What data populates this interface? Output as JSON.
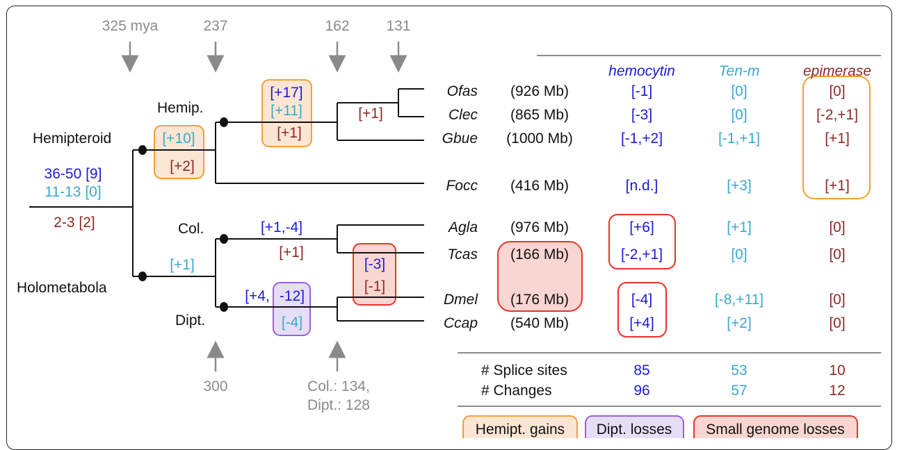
{
  "colors": {
    "hemocytin": "#1a1adb",
    "tenm": "#3aa9cc",
    "epimerase": "#8b2a26",
    "gray": "#8a8a8a",
    "black": "#111111",
    "hemipt_box": "#f3a033",
    "hemipt_fill": "#fbe6d4",
    "dipt_box": "#9b5fe0",
    "dipt_fill": "#e6def5",
    "small_box": "#e8332a",
    "small_fill": "#f9d6d1"
  },
  "times": {
    "t325": "325 mya",
    "t237": "237",
    "t162": "162",
    "t131": "131",
    "t300": "300",
    "t134": "Col.: 134,",
    "t128": "Dipt.: 128"
  },
  "clades": {
    "hemipteroid": "Hemipteroid",
    "holometabola": "Holometabola",
    "hemip": "Hemip.",
    "col": "Col.",
    "dipt": "Dipt."
  },
  "root_counts": {
    "hemocytin": "36-50 [9]",
    "tenm": "11-13 [0]",
    "epimerase": "2-3 [2]"
  },
  "branch_changes": {
    "hemiptera_stem_tenm": "[+10]",
    "hemiptera_stem_epi": "[+2]",
    "hemip_inner_hemo": "[+17]",
    "hemip_inner_tenm": "[+11]",
    "hemip_inner_epi": "[+1]",
    "ofas_clec_epi": "[+1]",
    "holo_stem_tenm": "[+1]",
    "col_stem_hemo": "[+1,-4]",
    "col_stem_epi": "[+1]",
    "dipt_stem_hemo_a": "[+4,",
    "dipt_stem_hemo_b": "-12]",
    "dipt_stem_tenm": "[-4]",
    "small_hemo": "[-3]",
    "small_epi": "[-1]"
  },
  "table": {
    "headers": {
      "hemocytin": "hemocytin",
      "tenm": "Ten-m",
      "epimerase": "epimerase"
    },
    "rows": [
      {
        "species": "Ofas",
        "genome": "(926 Mb)",
        "hemocytin": "[-1]",
        "tenm": "[0]",
        "epimerase": "[0]"
      },
      {
        "species": "Clec",
        "genome": "(865 Mb)",
        "hemocytin": "[-3]",
        "tenm": "[0]",
        "epimerase": "[-2,+1]"
      },
      {
        "species": "Gbue",
        "genome": "(1000 Mb)",
        "hemocytin": "[-1,+2]",
        "tenm": "[-1,+1]",
        "epimerase": "[+1]"
      },
      {
        "species": "Focc",
        "genome": "(416 Mb)",
        "hemocytin": "[n.d.]",
        "tenm": "[+3]",
        "epimerase": "[+1]"
      },
      {
        "species": "Agla",
        "genome": "(976 Mb)",
        "hemocytin": "[+6]",
        "tenm": "[+1]",
        "epimerase": "[0]"
      },
      {
        "species": "Tcas",
        "genome": "(166 Mb)",
        "hemocytin": "[-2,+1]",
        "tenm": "[0]",
        "epimerase": "[0]"
      },
      {
        "species": "Dmel",
        "genome": "(176 Mb)",
        "hemocytin": "[-4]",
        "tenm": "[-8,+11]",
        "epimerase": "[0]"
      },
      {
        "species": "Ccap",
        "genome": "(540 Mb)",
        "hemocytin": "[+4]",
        "tenm": "[+2]",
        "epimerase": "[0]"
      }
    ],
    "summary": [
      {
        "label": "# Splice sites",
        "hemocytin": "85",
        "tenm": "53",
        "epimerase": "10"
      },
      {
        "label": "# Changes",
        "hemocytin": "96",
        "tenm": "57",
        "epimerase": "12"
      }
    ]
  },
  "legend": {
    "hemipt": "Hemipt. gains",
    "dipt": "Dipt. losses",
    "small": "Small genome losses"
  }
}
